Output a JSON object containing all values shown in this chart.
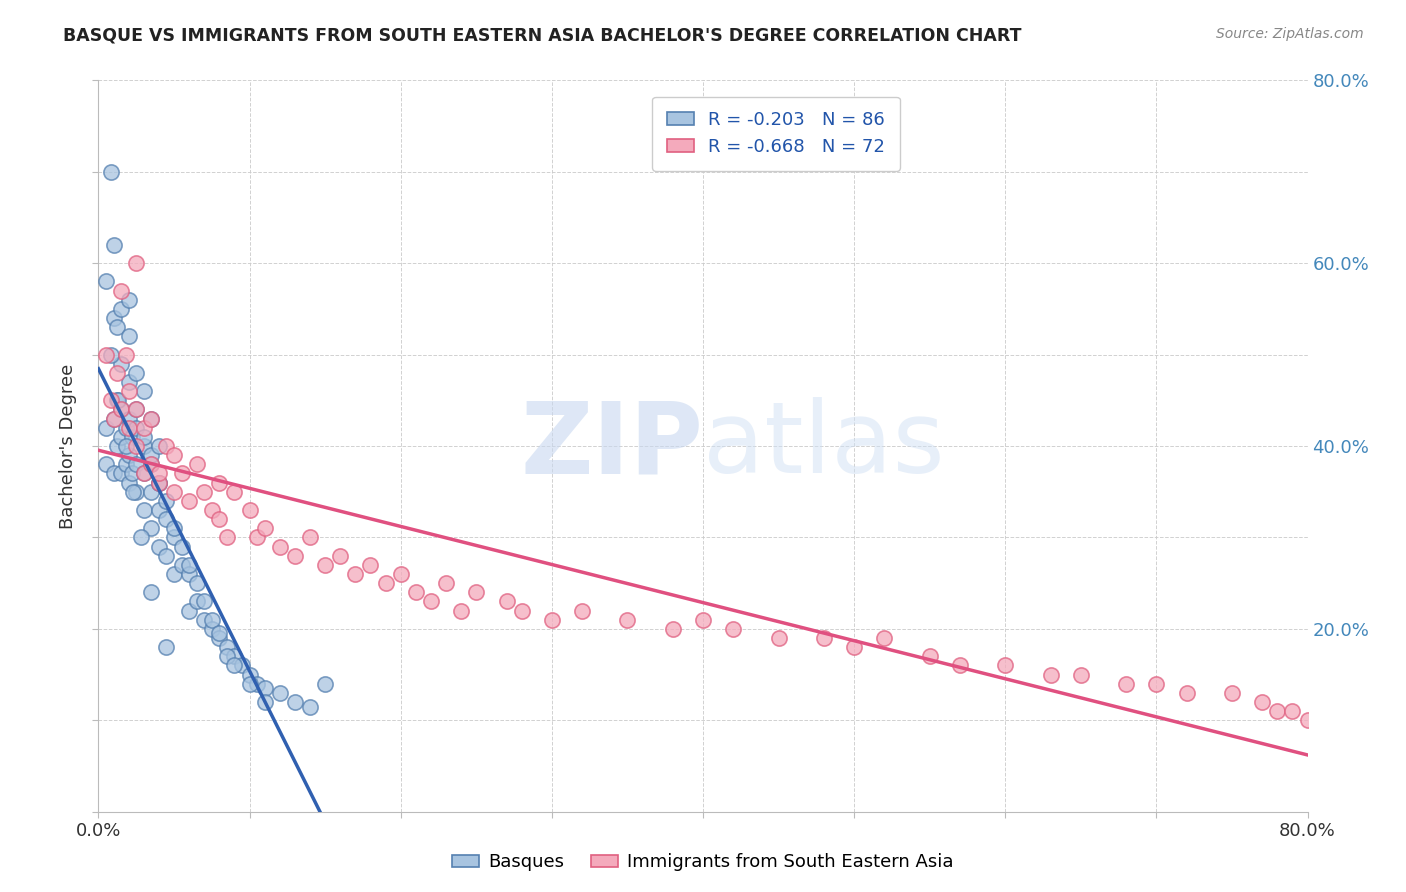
{
  "title": "BASQUE VS IMMIGRANTS FROM SOUTH EASTERN ASIA BACHELOR'S DEGREE CORRELATION CHART",
  "source": "Source: ZipAtlas.com",
  "ylabel": "Bachelor's Degree",
  "legend_blue_r": "R = -0.203",
  "legend_blue_n": "N = 86",
  "legend_pink_r": "R = -0.668",
  "legend_pink_n": "N = 72",
  "legend_label_blue": "Basques",
  "legend_label_pink": "Immigrants from South Eastern Asia",
  "watermark_zip": "ZIP",
  "watermark_atlas": "atlas",
  "blue_color": "#A8C4E0",
  "pink_color": "#F4AABC",
  "blue_edge_color": "#5580B0",
  "pink_edge_color": "#E06080",
  "blue_line_color": "#3060B0",
  "pink_line_color": "#E05080",
  "blue_scatter_x": [
    0.5,
    0.5,
    0.8,
    1.0,
    1.0,
    1.2,
    1.2,
    1.5,
    1.5,
    1.5,
    1.8,
    1.8,
    2.0,
    2.0,
    2.0,
    2.2,
    2.2,
    2.5,
    2.5,
    2.5,
    3.0,
    3.0,
    3.0,
    3.5,
    3.5,
    3.5,
    4.0,
    4.0,
    4.0,
    4.5,
    4.5,
    5.0,
    5.0,
    5.5,
    6.0,
    6.0,
    6.5,
    7.0,
    7.5,
    8.0,
    8.5,
    9.0,
    9.5,
    10.0,
    10.5,
    11.0,
    12.0,
    13.0,
    14.0,
    15.0,
    0.5,
    1.0,
    1.0,
    1.2,
    1.5,
    1.5,
    2.0,
    2.0,
    2.0,
    2.5,
    2.5,
    3.0,
    3.0,
    3.5,
    3.5,
    4.0,
    4.0,
    4.5,
    5.0,
    5.5,
    6.0,
    6.5,
    7.0,
    7.5,
    8.0,
    8.5,
    9.0,
    10.0,
    11.0,
    0.8,
    1.3,
    1.8,
    2.3,
    2.8,
    3.5,
    4.5
  ],
  "blue_scatter_y": [
    38.0,
    42.0,
    70.0,
    37.0,
    43.0,
    40.0,
    45.0,
    37.0,
    41.0,
    44.0,
    38.0,
    42.0,
    36.0,
    39.0,
    43.0,
    37.0,
    41.0,
    35.0,
    38.0,
    42.0,
    33.0,
    37.0,
    40.0,
    31.0,
    35.0,
    38.0,
    29.0,
    33.0,
    36.0,
    28.0,
    32.0,
    26.0,
    30.0,
    27.0,
    22.0,
    26.0,
    23.0,
    21.0,
    20.0,
    19.0,
    18.0,
    17.0,
    16.0,
    15.0,
    14.0,
    13.5,
    13.0,
    12.0,
    11.5,
    14.0,
    58.0,
    54.0,
    62.0,
    53.0,
    49.0,
    55.0,
    47.0,
    52.0,
    56.0,
    44.0,
    48.0,
    41.0,
    46.0,
    39.0,
    43.0,
    36.0,
    40.0,
    34.0,
    31.0,
    29.0,
    27.0,
    25.0,
    23.0,
    21.0,
    19.5,
    17.0,
    16.0,
    14.0,
    12.0,
    50.0,
    45.0,
    40.0,
    35.0,
    30.0,
    24.0,
    18.0
  ],
  "pink_scatter_x": [
    0.5,
    0.8,
    1.0,
    1.2,
    1.5,
    1.8,
    2.0,
    2.0,
    2.5,
    2.5,
    3.0,
    3.0,
    3.5,
    3.5,
    4.0,
    4.5,
    5.0,
    5.0,
    5.5,
    6.0,
    6.5,
    7.0,
    7.5,
    8.0,
    8.0,
    8.5,
    9.0,
    10.0,
    10.5,
    11.0,
    12.0,
    13.0,
    14.0,
    15.0,
    16.0,
    17.0,
    18.0,
    19.0,
    20.0,
    21.0,
    22.0,
    23.0,
    24.0,
    25.0,
    27.0,
    28.0,
    30.0,
    32.0,
    35.0,
    38.0,
    40.0,
    42.0,
    45.0,
    48.0,
    50.0,
    52.0,
    55.0,
    57.0,
    60.0,
    63.0,
    65.0,
    68.0,
    70.0,
    72.0,
    75.0,
    77.0,
    78.0,
    79.0,
    80.0,
    1.5,
    2.5,
    4.0
  ],
  "pink_scatter_y": [
    50.0,
    45.0,
    43.0,
    48.0,
    44.0,
    50.0,
    42.0,
    46.0,
    40.0,
    44.0,
    37.0,
    42.0,
    38.0,
    43.0,
    36.0,
    40.0,
    35.0,
    39.0,
    37.0,
    34.0,
    38.0,
    35.0,
    33.0,
    32.0,
    36.0,
    30.0,
    35.0,
    33.0,
    30.0,
    31.0,
    29.0,
    28.0,
    30.0,
    27.0,
    28.0,
    26.0,
    27.0,
    25.0,
    26.0,
    24.0,
    23.0,
    25.0,
    22.0,
    24.0,
    23.0,
    22.0,
    21.0,
    22.0,
    21.0,
    20.0,
    21.0,
    20.0,
    19.0,
    19.0,
    18.0,
    19.0,
    17.0,
    16.0,
    16.0,
    15.0,
    15.0,
    14.0,
    14.0,
    13.0,
    13.0,
    12.0,
    11.0,
    11.0,
    10.0,
    57.0,
    60.0,
    37.0
  ],
  "xlim": [
    0.0,
    80.0
  ],
  "ylim": [
    0.0,
    80.0
  ],
  "xticks": [
    0.0,
    10.0,
    20.0,
    30.0,
    40.0,
    50.0,
    60.0,
    70.0,
    80.0
  ],
  "yticks": [
    0.0,
    10.0,
    20.0,
    30.0,
    40.0,
    50.0,
    60.0,
    70.0,
    80.0
  ],
  "right_yticks": [
    0.0,
    20.0,
    40.0,
    60.0,
    80.0
  ],
  "right_yticklabels": [
    "",
    "20.0%",
    "40.0%",
    "60.0%",
    "80.0%"
  ],
  "blue_line_x_solid_end": 45.0,
  "pink_line_x_solid_end": 80.0,
  "background_color": "#FFFFFF",
  "grid_color": "#CCCCCC",
  "title_color": "#222222",
  "right_axis_color": "#4488BB",
  "legend_text_color": "#2255AA"
}
